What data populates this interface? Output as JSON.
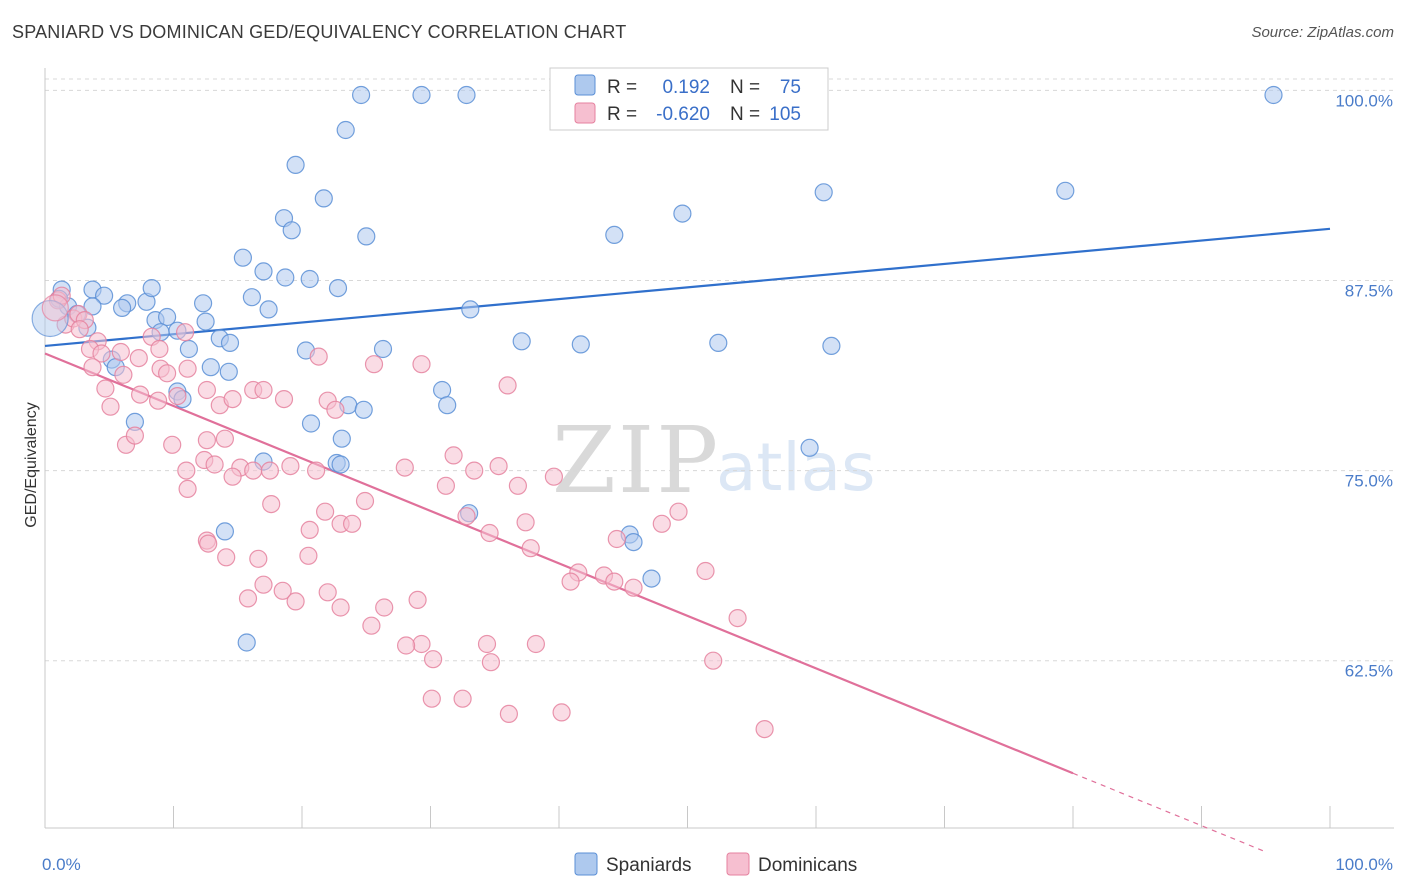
{
  "title": "SPANIARD VS DOMINICAN GED/EQUIVALENCY CORRELATION CHART",
  "source": "Source: ZipAtlas.com",
  "watermark": {
    "zip": "ZIP",
    "atlas": "atlas"
  },
  "legend": {
    "rows": [
      {
        "r_label": "R =",
        "r_value": "0.192",
        "n_label": "N =",
        "n_value": "75"
      },
      {
        "r_label": "R =",
        "r_value": "-0.620",
        "n_label": "N =",
        "n_value": "105"
      }
    ],
    "bottom": [
      "Spaniards",
      "Dominicans"
    ]
  },
  "colors": {
    "spaniards_fill": "#aec9ee",
    "spaniards_stroke": "#5b8fd6",
    "spaniards_line": "#3070cc",
    "dominicans_fill": "#f6bfd0",
    "dominicans_stroke": "#e5829f",
    "dominicans_line": "#e0709a",
    "tick_text": "#4a7cc9",
    "grid": "#d8d8d8"
  },
  "chart_data": {
    "type": "scatter",
    "title": "SPANIARD VS DOMINICAN GED/EQUIVALENCY CORRELATION CHART",
    "xlabel": "",
    "ylabel": "GED/Equivalency",
    "xlim": [
      0,
      100
    ],
    "ylim": [
      51.5,
      102
    ],
    "x_tick_labels": [
      {
        "value": 0,
        "label": "0.0%"
      },
      {
        "value": 100,
        "label": "100.0%"
      }
    ],
    "y_ticks": [
      {
        "value": 100,
        "label": "100.0%"
      },
      {
        "value": 87.5,
        "label": "87.5%"
      },
      {
        "value": 75,
        "label": "75.0%"
      },
      {
        "value": 62.5,
        "label": "62.5%"
      }
    ],
    "grid": "horizontal dashed",
    "legend_position": "top-center",
    "series": [
      {
        "name": "Spaniards",
        "r": 0.192,
        "n": 75,
        "trend": {
          "x": [
            0,
            100
          ],
          "y": [
            83.2,
            90.9
          ]
        },
        "points": [
          [
            1.3,
            86.9
          ],
          [
            1.1,
            86.3
          ],
          [
            1.8,
            85.8
          ],
          [
            3.7,
            86.9
          ],
          [
            4.6,
            86.5
          ],
          [
            3.7,
            85.8
          ],
          [
            6.4,
            86.0
          ],
          [
            6.0,
            85.7
          ],
          [
            7.9,
            86.1
          ],
          [
            8.3,
            87.0
          ],
          [
            8.6,
            84.9
          ],
          [
            9.5,
            85.1
          ],
          [
            2.5,
            85.3
          ],
          [
            3.3,
            84.4
          ],
          [
            9.0,
            84.1
          ],
          [
            12.3,
            86.0
          ],
          [
            12.5,
            84.8
          ],
          [
            11.2,
            83.0
          ],
          [
            13.6,
            83.7
          ],
          [
            14.4,
            83.4
          ],
          [
            10.3,
            84.2
          ],
          [
            5.2,
            82.3
          ],
          [
            5.5,
            81.8
          ],
          [
            12.9,
            81.8
          ],
          [
            14.3,
            81.5
          ],
          [
            7.0,
            78.2
          ],
          [
            10.3,
            80.2
          ],
          [
            10.7,
            79.7
          ],
          [
            15.4,
            89.0
          ],
          [
            17.0,
            88.1
          ],
          [
            18.7,
            87.7
          ],
          [
            20.6,
            87.6
          ],
          [
            16.1,
            86.4
          ],
          [
            17.4,
            85.6
          ],
          [
            22.8,
            87.0
          ],
          [
            25.0,
            90.4
          ],
          [
            23.4,
            97.4
          ],
          [
            19.5,
            95.1
          ],
          [
            21.7,
            92.9
          ],
          [
            18.6,
            91.6
          ],
          [
            19.2,
            90.8
          ],
          [
            24.6,
            99.7
          ],
          [
            29.3,
            99.7
          ],
          [
            32.8,
            99.7
          ],
          [
            20.3,
            82.9
          ],
          [
            26.3,
            83.0
          ],
          [
            23.6,
            79.3
          ],
          [
            30.9,
            80.3
          ],
          [
            31.3,
            79.3
          ],
          [
            20.7,
            78.1
          ],
          [
            23.1,
            77.1
          ],
          [
            17.0,
            75.6
          ],
          [
            22.7,
            75.5
          ],
          [
            33.0,
            72.2
          ],
          [
            33.1,
            85.6
          ],
          [
            37.1,
            83.5
          ],
          [
            41.7,
            83.3
          ],
          [
            44.3,
            90.5
          ],
          [
            49.6,
            91.9
          ],
          [
            52.0,
            99.7
          ],
          [
            44.8,
            98.1
          ],
          [
            45.5,
            70.8
          ],
          [
            47.2,
            67.9
          ],
          [
            47.9,
            99.7
          ],
          [
            60.6,
            93.3
          ],
          [
            52.4,
            83.4
          ],
          [
            61.2,
            83.2
          ],
          [
            59.5,
            76.5
          ],
          [
            45.8,
            70.3
          ],
          [
            79.4,
            93.4
          ],
          [
            95.6,
            99.7
          ],
          [
            14.0,
            71.0
          ],
          [
            15.7,
            63.7
          ],
          [
            24.8,
            79.0
          ],
          [
            23.0,
            75.4
          ]
        ]
      },
      {
        "name": "Dominicans",
        "r": -0.62,
        "n": 105,
        "trend": {
          "x": [
            0,
            80
          ],
          "y": [
            82.7,
            55.1
          ]
        },
        "trend_dashed": {
          "x": [
            80,
            94.8
          ],
          "y": [
            55.1,
            50.0
          ]
        },
        "points": [
          [
            1.0,
            86.2
          ],
          [
            1.3,
            86.5
          ],
          [
            1.6,
            84.6
          ],
          [
            2.2,
            85.0
          ],
          [
            2.6,
            85.3
          ],
          [
            3.1,
            84.9
          ],
          [
            2.7,
            84.3
          ],
          [
            4.1,
            83.5
          ],
          [
            3.5,
            83.0
          ],
          [
            4.4,
            82.7
          ],
          [
            5.9,
            82.8
          ],
          [
            3.7,
            81.8
          ],
          [
            6.1,
            81.3
          ],
          [
            8.3,
            83.8
          ],
          [
            8.9,
            83.0
          ],
          [
            7.3,
            82.4
          ],
          [
            9.0,
            81.7
          ],
          [
            9.5,
            81.4
          ],
          [
            10.9,
            84.1
          ],
          [
            11.1,
            81.7
          ],
          [
            4.7,
            80.4
          ],
          [
            7.4,
            80.0
          ],
          [
            5.1,
            79.2
          ],
          [
            8.8,
            79.6
          ],
          [
            10.3,
            79.9
          ],
          [
            13.6,
            79.3
          ],
          [
            12.6,
            80.3
          ],
          [
            14.6,
            79.7
          ],
          [
            16.2,
            80.3
          ],
          [
            17.0,
            80.3
          ],
          [
            18.6,
            79.7
          ],
          [
            6.3,
            76.7
          ],
          [
            7.0,
            77.3
          ],
          [
            9.9,
            76.7
          ],
          [
            11.0,
            75.0
          ],
          [
            12.4,
            75.7
          ],
          [
            13.2,
            75.4
          ],
          [
            14.0,
            77.1
          ],
          [
            12.6,
            77.0
          ],
          [
            15.2,
            75.2
          ],
          [
            16.2,
            75.0
          ],
          [
            11.1,
            73.8
          ],
          [
            14.6,
            74.6
          ],
          [
            17.5,
            75.0
          ],
          [
            19.1,
            75.3
          ],
          [
            21.1,
            75.0
          ],
          [
            17.6,
            72.8
          ],
          [
            21.8,
            72.3
          ],
          [
            23.0,
            71.5
          ],
          [
            24.9,
            73.0
          ],
          [
            12.6,
            70.4
          ],
          [
            12.7,
            70.2
          ],
          [
            14.1,
            69.3
          ],
          [
            16.6,
            69.2
          ],
          [
            20.5,
            69.4
          ],
          [
            20.6,
            71.1
          ],
          [
            23.9,
            71.5
          ],
          [
            17.0,
            67.5
          ],
          [
            18.5,
            67.1
          ],
          [
            19.5,
            66.4
          ],
          [
            22.0,
            67.0
          ],
          [
            23.0,
            66.0
          ],
          [
            15.8,
            66.6
          ],
          [
            26.4,
            66.0
          ],
          [
            29.0,
            66.5
          ],
          [
            25.4,
            64.8
          ],
          [
            29.3,
            63.6
          ],
          [
            28.1,
            63.5
          ],
          [
            30.2,
            62.6
          ],
          [
            30.1,
            60.0
          ],
          [
            32.5,
            60.0
          ],
          [
            34.4,
            63.6
          ],
          [
            34.7,
            62.4
          ],
          [
            38.2,
            63.6
          ],
          [
            40.2,
            59.1
          ],
          [
            36.1,
            59.0
          ],
          [
            41.5,
            68.3
          ],
          [
            40.9,
            67.7
          ],
          [
            43.5,
            68.1
          ],
          [
            44.3,
            67.7
          ],
          [
            44.5,
            70.5
          ],
          [
            48.0,
            71.5
          ],
          [
            45.8,
            67.3
          ],
          [
            49.3,
            72.3
          ],
          [
            51.4,
            68.4
          ],
          [
            52.0,
            62.5
          ],
          [
            53.9,
            65.3
          ],
          [
            56.0,
            58.0
          ],
          [
            36.0,
            80.6
          ],
          [
            35.3,
            75.3
          ],
          [
            31.2,
            74.0
          ],
          [
            32.8,
            72.0
          ],
          [
            28.0,
            75.2
          ],
          [
            31.8,
            76.0
          ],
          [
            33.4,
            75.0
          ],
          [
            39.6,
            74.6
          ],
          [
            37.8,
            69.9
          ],
          [
            36.8,
            74.0
          ],
          [
            34.6,
            70.9
          ],
          [
            37.4,
            71.6
          ],
          [
            29.3,
            82.0
          ],
          [
            22.0,
            79.6
          ],
          [
            22.6,
            79.0
          ],
          [
            25.6,
            82.0
          ],
          [
            21.3,
            82.5
          ]
        ]
      }
    ]
  }
}
